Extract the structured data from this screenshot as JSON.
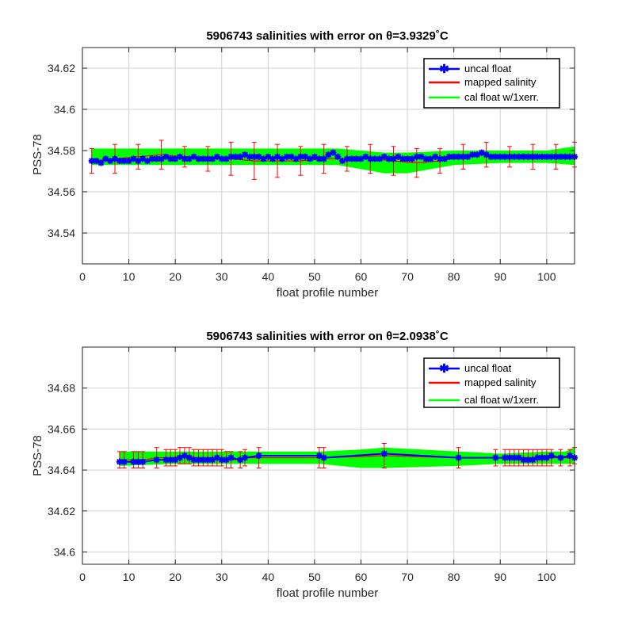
{
  "chart_data": [
    {
      "type": "line",
      "title": "5906743 salinities with error on θ=3.9329˚C",
      "xlabel": "float profile number",
      "ylabel": "PSS-78",
      "xlim": [
        0,
        106
      ],
      "ylim": [
        34.525,
        34.63
      ],
      "xticks": [
        0,
        10,
        20,
        30,
        40,
        50,
        60,
        70,
        80,
        90,
        100
      ],
      "yticks": [
        34.54,
        34.56,
        34.58,
        34.6,
        34.62
      ],
      "ytick_labels": [
        "34.54",
        "34.56",
        "34.58",
        "34.6",
        "34.62"
      ],
      "grid": true,
      "legend_position": "top-right",
      "legend": [
        "uncal float",
        "mapped salinity",
        "cal float w/1xerr."
      ],
      "series": [
        {
          "name": "uncal float",
          "color": "#0000ff",
          "x": [
            2,
            3,
            4,
            5,
            6,
            7,
            8,
            9,
            10,
            11,
            12,
            13,
            14,
            15,
            16,
            17,
            18,
            19,
            20,
            21,
            22,
            23,
            24,
            25,
            26,
            27,
            28,
            29,
            30,
            31,
            32,
            33,
            34,
            35,
            36,
            37,
            38,
            39,
            40,
            41,
            42,
            43,
            44,
            45,
            46,
            47,
            48,
            49,
            50,
            51,
            52,
            53,
            54,
            55,
            56,
            57,
            58,
            59,
            60,
            61,
            62,
            63,
            64,
            65,
            66,
            67,
            68,
            69,
            70,
            71,
            72,
            73,
            74,
            75,
            76,
            77,
            78,
            79,
            80,
            81,
            82,
            83,
            84,
            85,
            86,
            87,
            88,
            89,
            90,
            91,
            92,
            93,
            94,
            95,
            96,
            97,
            98,
            99,
            100,
            101,
            102,
            103,
            104,
            105,
            106
          ],
          "values": [
            34.575,
            34.575,
            34.574,
            34.576,
            34.575,
            34.576,
            34.575,
            34.575,
            34.575,
            34.576,
            34.575,
            34.576,
            34.575,
            34.576,
            34.576,
            34.576,
            34.577,
            34.576,
            34.576,
            34.577,
            34.576,
            34.576,
            34.577,
            34.576,
            34.576,
            34.576,
            34.576,
            34.577,
            34.576,
            34.576,
            34.577,
            34.577,
            34.577,
            34.578,
            34.577,
            34.577,
            34.577,
            34.576,
            34.577,
            34.576,
            34.577,
            34.576,
            34.577,
            34.577,
            34.576,
            34.577,
            34.577,
            34.576,
            34.577,
            34.576,
            34.576,
            34.578,
            34.579,
            34.577,
            34.575,
            34.576,
            34.576,
            34.576,
            34.576,
            34.577,
            34.576,
            34.576,
            34.576,
            34.577,
            34.576,
            34.576,
            34.577,
            34.576,
            34.576,
            34.576,
            34.577,
            34.577,
            34.576,
            34.576,
            34.577,
            34.576,
            34.576,
            34.577,
            34.577,
            34.577,
            34.577,
            34.577,
            34.578,
            34.578,
            34.579,
            34.578,
            34.577,
            34.577,
            34.577,
            34.577,
            34.577,
            34.577,
            34.577,
            34.577,
            34.577,
            34.577,
            34.577,
            34.577,
            34.577,
            34.577,
            34.577,
            34.577,
            34.577,
            34.577,
            34.577
          ]
        },
        {
          "name": "mapped salinity",
          "color": "#ff0000",
          "x": [
            2,
            7,
            12,
            17,
            22,
            27,
            32,
            37,
            42,
            47,
            52,
            57,
            62,
            67,
            72,
            77,
            82,
            87,
            92,
            97,
            102,
            106
          ],
          "values": [
            34.575,
            34.576,
            34.577,
            34.578,
            34.577,
            34.576,
            34.576,
            34.575,
            34.575,
            34.575,
            34.576,
            34.576,
            34.576,
            34.575,
            34.574,
            34.575,
            34.577,
            34.578,
            34.577,
            34.577,
            34.577,
            34.578
          ],
          "error": [
            0.006,
            0.007,
            0.006,
            0.007,
            0.005,
            0.006,
            0.008,
            0.009,
            0.008,
            0.007,
            0.007,
            0.006,
            0.007,
            0.007,
            0.007,
            0.006,
            0.006,
            0.006,
            0.005,
            0.006,
            0.006,
            0.006
          ]
        },
        {
          "name": "cal float w/1xerr.",
          "color": "#00ff00",
          "x": [
            2,
            10,
            20,
            30,
            40,
            50,
            55,
            60,
            65,
            70,
            80,
            90,
            100,
            106
          ],
          "lower": [
            34.573,
            34.573,
            34.573,
            34.573,
            34.573,
            34.573,
            34.573,
            34.571,
            34.569,
            34.569,
            34.573,
            34.574,
            34.574,
            34.573
          ],
          "upper": [
            34.581,
            34.581,
            34.581,
            34.581,
            34.581,
            34.581,
            34.581,
            34.58,
            34.579,
            34.579,
            34.58,
            34.58,
            34.58,
            34.582
          ]
        }
      ]
    },
    {
      "type": "line",
      "title": "5906743 salinities with error on θ=2.0938˚C",
      "xlabel": "float profile number",
      "ylabel": "PSS-78",
      "xlim": [
        0,
        106
      ],
      "ylim": [
        34.594,
        34.7
      ],
      "xticks": [
        0,
        10,
        20,
        30,
        40,
        50,
        60,
        70,
        80,
        90,
        100
      ],
      "yticks": [
        34.6,
        34.62,
        34.64,
        34.66,
        34.68
      ],
      "ytick_labels": [
        "34.6",
        "34.62",
        "34.64",
        "34.66",
        "34.68"
      ],
      "grid": true,
      "legend_position": "top-right",
      "legend": [
        "uncal float",
        "mapped salinity",
        "cal float w/1xerr."
      ],
      "series": [
        {
          "name": "uncal float",
          "color": "#0000ff",
          "x": [
            8,
            9,
            11,
            12,
            13,
            16,
            18,
            19,
            20,
            21,
            22,
            23,
            24,
            25,
            26,
            27,
            28,
            29,
            30,
            31,
            32,
            34,
            35,
            38,
            51,
            52,
            65,
            81,
            89,
            91,
            92,
            93,
            94,
            95,
            96,
            97,
            98,
            99,
            100,
            101,
            103,
            105,
            106
          ],
          "values": [
            34.644,
            34.644,
            34.644,
            34.644,
            34.644,
            34.645,
            34.645,
            34.645,
            34.645,
            34.646,
            34.647,
            34.646,
            34.645,
            34.645,
            34.645,
            34.645,
            34.645,
            34.646,
            34.645,
            34.645,
            34.646,
            34.645,
            34.646,
            34.647,
            34.647,
            34.646,
            34.648,
            34.646,
            34.646,
            34.646,
            34.646,
            34.646,
            34.646,
            34.645,
            34.645,
            34.645,
            34.646,
            34.646,
            34.646,
            34.647,
            34.646,
            34.647,
            34.646
          ]
        },
        {
          "name": "mapped salinity",
          "color": "#ff0000",
          "x": [
            8,
            9,
            11,
            12,
            13,
            16,
            18,
            19,
            20,
            21,
            22,
            23,
            24,
            25,
            26,
            27,
            28,
            29,
            30,
            31,
            32,
            34,
            35,
            38,
            51,
            52,
            65,
            81,
            89,
            91,
            92,
            93,
            94,
            95,
            96,
            97,
            98,
            99,
            100,
            101,
            103,
            105,
            106
          ],
          "values": [
            34.645,
            34.645,
            34.645,
            34.645,
            34.645,
            34.646,
            34.646,
            34.646,
            34.646,
            34.647,
            34.647,
            34.647,
            34.646,
            34.646,
            34.646,
            34.646,
            34.646,
            34.646,
            34.646,
            34.645,
            34.645,
            34.645,
            34.646,
            34.646,
            34.646,
            34.646,
            34.647,
            34.646,
            34.646,
            34.646,
            34.646,
            34.646,
            34.646,
            34.646,
            34.646,
            34.646,
            34.646,
            34.646,
            34.646,
            34.646,
            34.646,
            34.646,
            34.647
          ],
          "error": [
            0.004,
            0.004,
            0.004,
            0.004,
            0.004,
            0.005,
            0.004,
            0.004,
            0.004,
            0.004,
            0.004,
            0.004,
            0.004,
            0.004,
            0.004,
            0.004,
            0.004,
            0.004,
            0.004,
            0.004,
            0.004,
            0.004,
            0.004,
            0.005,
            0.005,
            0.005,
            0.006,
            0.005,
            0.004,
            0.004,
            0.004,
            0.004,
            0.004,
            0.004,
            0.004,
            0.004,
            0.004,
            0.004,
            0.004,
            0.004,
            0.004,
            0.004,
            0.004
          ]
        },
        {
          "name": "cal float w/1xerr.",
          "color": "#00ff00",
          "x": [
            8,
            20,
            35,
            51,
            60,
            65,
            81,
            90,
            100,
            104,
            106
          ],
          "lower": [
            34.642,
            34.643,
            34.643,
            34.643,
            34.641,
            34.641,
            34.642,
            34.643,
            34.643,
            34.643,
            34.643
          ],
          "upper": [
            34.649,
            34.649,
            34.649,
            34.649,
            34.65,
            34.651,
            34.649,
            34.648,
            34.649,
            34.649,
            34.651
          ]
        }
      ]
    }
  ]
}
